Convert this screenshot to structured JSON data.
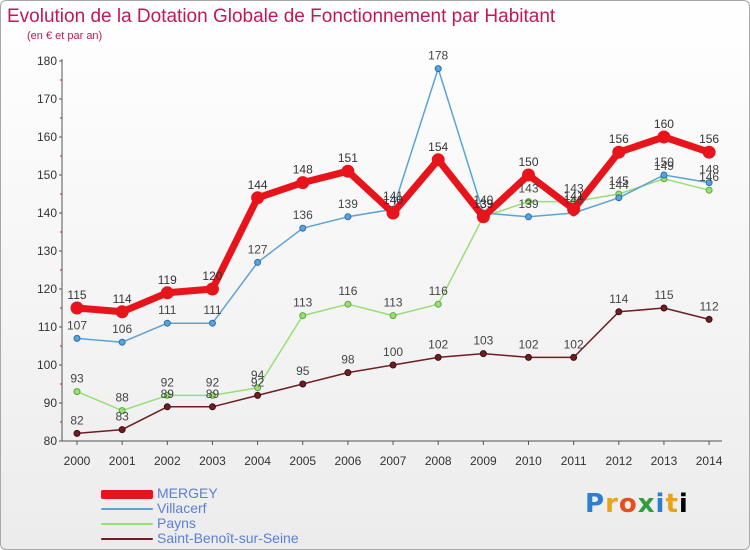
{
  "chart_data": {
    "type": "line",
    "title": "Evolution de la Dotation Globale de Fonctionnement par Habitant",
    "subtitle": "(en € et par an)",
    "xlabel": "",
    "ylabel": "",
    "x": [
      "2000",
      "2001",
      "2002",
      "2003",
      "2004",
      "2005",
      "2006",
      "2007",
      "2008",
      "2009",
      "2010",
      "2011",
      "2012",
      "2013",
      "2014"
    ],
    "ylim": [
      80,
      180
    ],
    "yticks": [
      80,
      90,
      100,
      110,
      120,
      130,
      140,
      150,
      160,
      170,
      180
    ],
    "grid": false,
    "legend_position": "bottom-left",
    "series": [
      {
        "name": "MERGEY",
        "color": "#e8141b",
        "values": [
          115,
          114,
          119,
          120,
          144,
          148,
          151,
          140,
          154,
          139,
          150,
          141,
          156,
          160,
          156
        ]
      },
      {
        "name": "Villacerf",
        "color": "#5ba3d6",
        "values": [
          107,
          106,
          111,
          111,
          127,
          136,
          139,
          141,
          178,
          140,
          139,
          140,
          144,
          150,
          148
        ]
      },
      {
        "name": "Payns",
        "color": "#99dd77",
        "values": [
          93,
          88,
          92,
          92,
          94,
          113,
          116,
          113,
          116,
          139,
          143,
          143,
          145,
          149,
          146
        ]
      },
      {
        "name": "Saint-Benoît-sur-Seine",
        "color": "#6e1e22",
        "values": [
          82,
          83,
          89,
          89,
          92,
          95,
          98,
          100,
          102,
          103,
          102,
          102,
          114,
          115,
          112
        ]
      }
    ]
  },
  "branding": {
    "logo_letters": [
      "P",
      "r",
      "o",
      "x",
      "i",
      "t",
      "i"
    ]
  }
}
